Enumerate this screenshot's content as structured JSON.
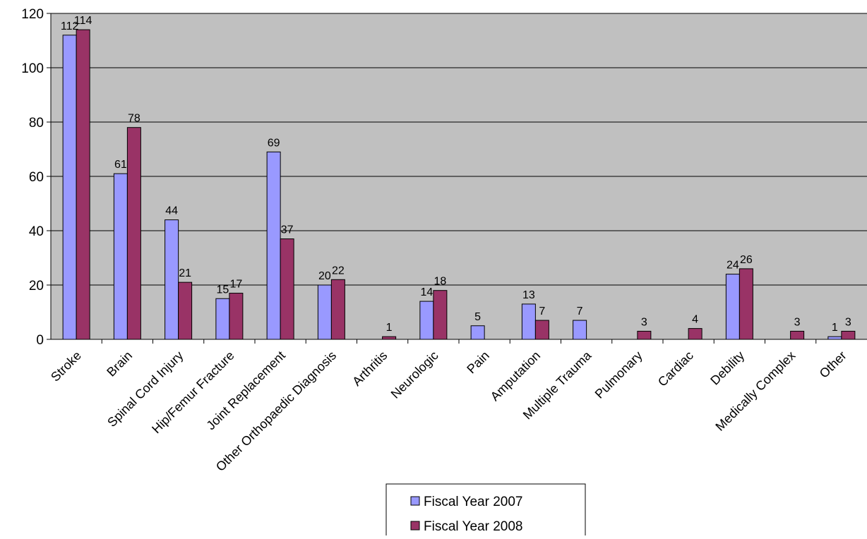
{
  "chart_data": {
    "type": "bar",
    "title": "",
    "xlabel": "",
    "ylabel": "",
    "ylim": [
      0,
      120
    ],
    "yticks": [
      0,
      20,
      40,
      60,
      80,
      100,
      120
    ],
    "grid": true,
    "legend_position": "bottom",
    "categories": [
      "Stroke",
      "Brain",
      "Spinal Cord Injury",
      "Hip/Femur Fracture",
      "Joint Replacement",
      "Other Orthopaedic Diagnosis",
      "Arthritis",
      "Neurologic",
      "Pain",
      "Amputation",
      "Multiple Trauma",
      "Pulmonary",
      "Cardiac",
      "Debility",
      "Medically Complex",
      "Other"
    ],
    "series": [
      {
        "name": "Fiscal Year 2007",
        "color": "#9999ff",
        "values": [
          112,
          61,
          44,
          15,
          69,
          20,
          null,
          14,
          5,
          13,
          7,
          null,
          null,
          24,
          null,
          1
        ]
      },
      {
        "name": "Fiscal Year 2008",
        "color": "#993366",
        "values": [
          114,
          78,
          21,
          17,
          37,
          22,
          1,
          18,
          null,
          7,
          null,
          3,
          4,
          26,
          3,
          3
        ]
      }
    ],
    "plot_background": "#c0c0c0"
  }
}
